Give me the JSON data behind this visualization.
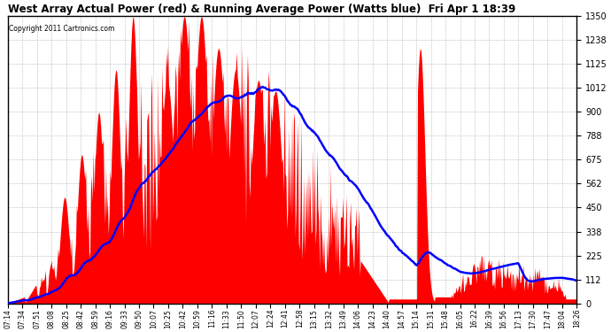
{
  "title": "West Array Actual Power (red) & Running Average Power (Watts blue)  Fri Apr 1 18:39",
  "copyright": "Copyright 2011 Cartronics.com",
  "ylim": [
    0,
    1350
  ],
  "yticks": [
    0,
    112.5,
    225.0,
    337.5,
    450.0,
    562.5,
    675.0,
    787.5,
    900.0,
    1012.5,
    1125.0,
    1237.5,
    1350.0
  ],
  "fig_bg": "#ffffff",
  "plot_bg": "#ffffff",
  "title_color": "#000000",
  "grid_color": "#888888",
  "actual_color": "#ff0000",
  "avg_color": "#0000ff",
  "x_labels": [
    "07:14",
    "07:34",
    "07:51",
    "08:08",
    "08:25",
    "08:42",
    "08:59",
    "09:16",
    "09:33",
    "09:50",
    "10:07",
    "10:25",
    "10:42",
    "10:59",
    "11:16",
    "11:33",
    "11:50",
    "12:07",
    "12:24",
    "12:41",
    "12:58",
    "13:15",
    "13:32",
    "13:49",
    "14:06",
    "14:23",
    "14:40",
    "14:57",
    "15:14",
    "15:31",
    "15:48",
    "16:05",
    "16:22",
    "16:39",
    "16:56",
    "17:13",
    "17:30",
    "17:47",
    "18:04",
    "18:26"
  ]
}
